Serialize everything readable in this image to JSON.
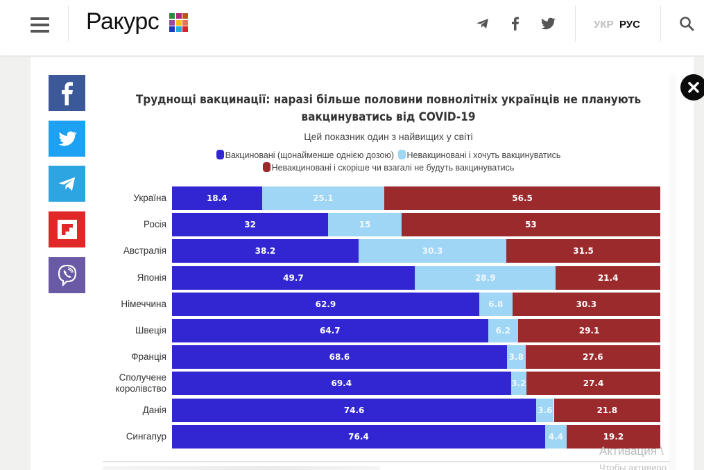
{
  "header": {
    "logo_text": "Ракурс",
    "logo_colors": [
      "#2e8b3e",
      "#b0287a",
      "#b8561e",
      "#9b4aa0",
      "#f2c21a",
      "#e8735a",
      "#1c39c4",
      "#22b0d8",
      "#d9232a"
    ],
    "lang_inactive": "УКР",
    "lang_active": "РУС",
    "icons": [
      "menu-icon",
      "telegram-icon",
      "facebook-icon",
      "twitter-icon",
      "search-icon"
    ]
  },
  "share": [
    {
      "name": "facebook",
      "color": "#3b5998"
    },
    {
      "name": "twitter",
      "color": "#1da1f2"
    },
    {
      "name": "telegram",
      "color": "#2ca5e0"
    },
    {
      "name": "flipboard",
      "color": "#e12828"
    },
    {
      "name": "viber",
      "color": "#6a5aa6"
    }
  ],
  "watermark": {
    "line1": "Активация \\",
    "line2": "Чтобы активиро"
  },
  "chart_data": {
    "type": "bar",
    "orientation": "horizontal",
    "stacked": true,
    "title": "Труднощі вакцинації: наразі більше половини повнолітніх українців не планують вакцинуватись від COVID-19",
    "title_line1": "Труднощі вакцинації: наразі більше половини повнолітніх українців не планують",
    "title_line2": "вакцинуватись від COVID-19",
    "subtitle": "Цей показник один з найвищих у світі",
    "xlim": [
      0,
      100
    ],
    "legend_position": "top",
    "categories": [
      "Україна",
      "Росія",
      "Австралія",
      "Японія",
      "Німеччина",
      "Швеція",
      "Франція",
      "Сполучене королівство",
      "Данія",
      "Сингапур"
    ],
    "category_lines": [
      [
        "Україна"
      ],
      [
        "Росія"
      ],
      [
        "Австралія"
      ],
      [
        "Японія"
      ],
      [
        "Німеччина"
      ],
      [
        "Швеція"
      ],
      [
        "Франція"
      ],
      [
        "Сполучене",
        "королівство"
      ],
      [
        "Данія"
      ],
      [
        "Сингапур"
      ]
    ],
    "series": [
      {
        "name": "Вакциновані (щонайменше однією дозою)",
        "color": "#3126d2",
        "label_color": "#ffffff",
        "values": [
          18.4,
          32,
          38.2,
          49.7,
          62.9,
          64.7,
          68.6,
          69.4,
          74.6,
          76.4
        ],
        "labels": [
          "18.4",
          "32",
          "38.2",
          "49.7",
          "62.9",
          "64.7",
          "68.6",
          "69.4",
          "74.6",
          "76.4"
        ]
      },
      {
        "name": "Невакциновані і хочуть вакцинуватись",
        "color": "#9fd6f5",
        "label_color": "#eef7fd",
        "values": [
          25.1,
          15,
          30.3,
          28.9,
          6.8,
          6.2,
          3.8,
          3.2,
          3.6,
          4.4
        ],
        "labels": [
          "25.1",
          "15",
          "30.3",
          "28.9",
          "6.8",
          "6.2",
          "3.8",
          "3.2",
          "3.6",
          "4.4"
        ]
      },
      {
        "name": "Невакциновані і скоріше чи взагалі не будуть вакцинуватись",
        "color": "#9b2a2d",
        "label_color": "#ffffff",
        "values": [
          56.5,
          53,
          31.5,
          21.4,
          30.3,
          29.1,
          27.6,
          27.4,
          21.8,
          19.2
        ],
        "labels": [
          "56.5",
          "53",
          "31.5",
          "21.4",
          "30.3",
          "29.1",
          "27.6",
          "27.4",
          "21.8",
          "19.2"
        ]
      }
    ]
  }
}
